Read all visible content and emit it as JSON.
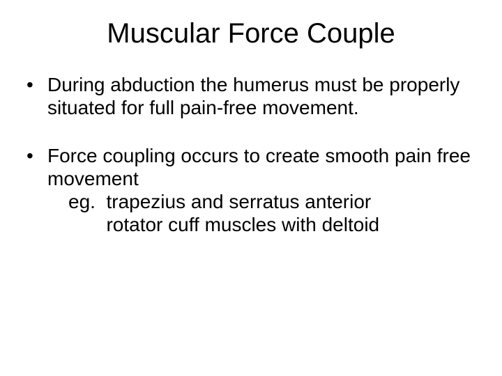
{
  "title": "Muscular Force Couple",
  "bullets": {
    "b1": "During abduction the humerus must be properly situated for full pain-free movement.",
    "b2_main": "Force coupling occurs to create smooth pain free movement",
    "b2_sub1": "eg.  trapezius and serratus anterior",
    "b2_sub2": "       rotator cuff muscles with deltoid"
  },
  "colors": {
    "background": "#ffffff",
    "text": "#000000"
  },
  "typography": {
    "title_fontsize": 40,
    "body_fontsize": 28,
    "font_family": "Arial"
  }
}
